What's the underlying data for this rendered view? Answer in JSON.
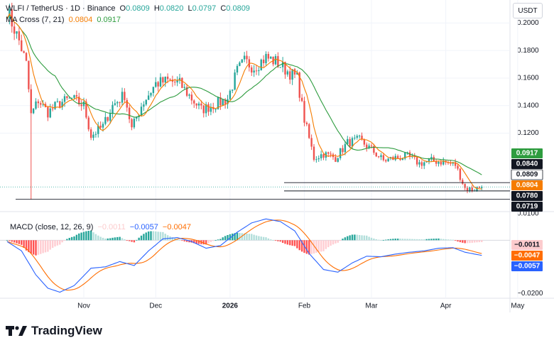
{
  "header": {
    "symbol": "WLFI / TetherUS · 1D · Binance",
    "ohlc": [
      {
        "label": "O",
        "value": "0.0809"
      },
      {
        "label": "H",
        "value": "0.0820"
      },
      {
        "label": "L",
        "value": "0.0797"
      },
      {
        "label": "C",
        "value": "0.0809"
      }
    ],
    "ma_label": "MA Cross (7, 21)",
    "ma_fast_value": "0.0804",
    "ma_slow_value": "0.0917",
    "macd_label": "MACD (close, 12, 26, 9)",
    "macd_hist_value": "−0.0011",
    "macd_line_value": "−0.0057",
    "macd_signal_value": "−0.0047"
  },
  "unit": "USDT",
  "brand": "TradingView",
  "colors": {
    "up": "#26a69a",
    "down": "#ef5350",
    "ma_fast": "#f57c00",
    "ma_slow": "#2e9c3f",
    "macd_line": "#2962ff",
    "macd_signal": "#ff6d00",
    "grid": "#f0f3fa",
    "text": "#131722"
  },
  "chart_data": {
    "type": "candlestick",
    "price_axis": {
      "ticks": [
        "0.2000",
        "0.1800",
        "0.1600",
        "0.1400",
        "0.1200"
      ],
      "range": [
        0.064,
        0.2095
      ]
    },
    "macd_axis": {
      "ticks": [
        "0.0100",
        "−0.0200"
      ],
      "range": [
        -0.0207,
        0.0102
      ]
    },
    "x_ticks": [
      "Nov",
      "Dec",
      "2026",
      "Feb",
      "Mar",
      "Apr",
      "May"
    ],
    "price_tags": [
      {
        "value": "0.0917",
        "level": 0.0917,
        "color": "#2e9c3f",
        "text_color": "#ffffff"
      },
      {
        "value": "0.0840",
        "level": 0.084,
        "color": "#131722",
        "text_color": "#ffffff"
      },
      {
        "value": "0.0809",
        "level": 0.0809,
        "color": "#ffffff",
        "text_color": "#131722"
      },
      {
        "value": "0.0804",
        "level": 0.0804,
        "color": "#f57c00",
        "text_color": "#ffffff"
      },
      {
        "value": "0.0780",
        "level": 0.078,
        "color": "#131722",
        "text_color": "#ffffff"
      },
      {
        "value": "0.0719",
        "level": 0.0719,
        "color": "#131722",
        "text_color": "#ffffff"
      }
    ],
    "macd_tags": [
      {
        "value": "−0.0011",
        "level": -0.0011,
        "color": "#fccbcd",
        "text_color": "#131722"
      },
      {
        "value": "−0.0047",
        "level": -0.0047,
        "color": "#ff6d00",
        "text_color": "#ffffff"
      },
      {
        "value": "−0.0057",
        "level": -0.0057,
        "color": "#2962ff",
        "text_color": "#ffffff"
      }
    ],
    "start_date": "2025-09-30",
    "end_date": "2026-04-16",
    "close_anchors": [
      [
        "2025-09-30",
        0.2095
      ],
      [
        "2025-10-02",
        0.2
      ],
      [
        "2025-10-05",
        0.187
      ],
      [
        "2025-10-08",
        0.17
      ],
      [
        "2025-10-10",
        0.133
      ],
      [
        "2025-10-13",
        0.144
      ],
      [
        "2025-10-17",
        0.135
      ],
      [
        "2025-10-22",
        0.142
      ],
      [
        "2025-10-27",
        0.145
      ],
      [
        "2025-11-01",
        0.14
      ],
      [
        "2025-11-04",
        0.118
      ],
      [
        "2025-11-09",
        0.125
      ],
      [
        "2025-11-13",
        0.14
      ],
      [
        "2025-11-18",
        0.148
      ],
      [
        "2025-11-21",
        0.123
      ],
      [
        "2025-11-25",
        0.14
      ],
      [
        "2025-12-01",
        0.156
      ],
      [
        "2025-12-06",
        0.158
      ],
      [
        "2025-12-11",
        0.156
      ],
      [
        "2025-12-16",
        0.145
      ],
      [
        "2025-12-20",
        0.137
      ],
      [
        "2025-12-26",
        0.141
      ],
      [
        "2025-12-31",
        0.145
      ],
      [
        "2026-01-04",
        0.165
      ],
      [
        "2026-01-07",
        0.172
      ],
      [
        "2026-01-11",
        0.168
      ],
      [
        "2026-01-16",
        0.175
      ],
      [
        "2026-01-20",
        0.172
      ],
      [
        "2026-01-25",
        0.165
      ],
      [
        "2026-01-29",
        0.16
      ],
      [
        "2026-02-01",
        0.13
      ],
      [
        "2026-02-05",
        0.102
      ],
      [
        "2026-02-09",
        0.105
      ],
      [
        "2026-02-14",
        0.102
      ],
      [
        "2026-02-19",
        0.113
      ],
      [
        "2026-02-24",
        0.115
      ],
      [
        "2026-03-01",
        0.108
      ],
      [
        "2026-03-06",
        0.1
      ],
      [
        "2026-03-11",
        0.102
      ],
      [
        "2026-03-16",
        0.103
      ],
      [
        "2026-03-21",
        0.098
      ],
      [
        "2026-03-26",
        0.1
      ],
      [
        "2026-03-31",
        0.099
      ],
      [
        "2026-04-05",
        0.097
      ],
      [
        "2026-04-09",
        0.08
      ],
      [
        "2026-04-12",
        0.079
      ],
      [
        "2026-04-16",
        0.0809
      ]
    ],
    "macd_anchors": [
      [
        "2025-09-30",
        -0.0005
      ],
      [
        "2025-10-06",
        -0.004
      ],
      [
        "2025-10-12",
        -0.013
      ],
      [
        "2025-10-17",
        -0.018
      ],
      [
        "2025-10-22",
        -0.0195
      ],
      [
        "2025-10-28",
        -0.017
      ],
      [
        "2025-11-04",
        -0.0105
      ],
      [
        "2025-11-10",
        -0.01
      ],
      [
        "2025-11-16",
        -0.008
      ],
      [
        "2025-11-22",
        -0.0095
      ],
      [
        "2025-11-28",
        -0.004
      ],
      [
        "2025-12-04",
        0.0005
      ],
      [
        "2025-12-10",
        0.001
      ],
      [
        "2025-12-16",
        -0.0005
      ],
      [
        "2025-12-22",
        -0.003
      ],
      [
        "2025-12-28",
        -0.002
      ],
      [
        "2026-01-04",
        0.003
      ],
      [
        "2026-01-10",
        0.0065
      ],
      [
        "2026-01-16",
        0.008
      ],
      [
        "2026-01-22",
        0.007
      ],
      [
        "2026-01-28",
        0.0035
      ],
      [
        "2026-02-03",
        -0.005
      ],
      [
        "2026-02-09",
        -0.011
      ],
      [
        "2026-02-15",
        -0.012
      ],
      [
        "2026-02-21",
        -0.0085
      ],
      [
        "2026-02-27",
        -0.006
      ],
      [
        "2026-03-05",
        -0.0062
      ],
      [
        "2026-03-11",
        -0.0052
      ],
      [
        "2026-03-17",
        -0.0045
      ],
      [
        "2026-03-23",
        -0.004
      ],
      [
        "2026-03-29",
        -0.003
      ],
      [
        "2026-04-04",
        -0.0028
      ],
      [
        "2026-04-09",
        -0.0045
      ],
      [
        "2026-04-16",
        -0.0057
      ]
    ]
  }
}
